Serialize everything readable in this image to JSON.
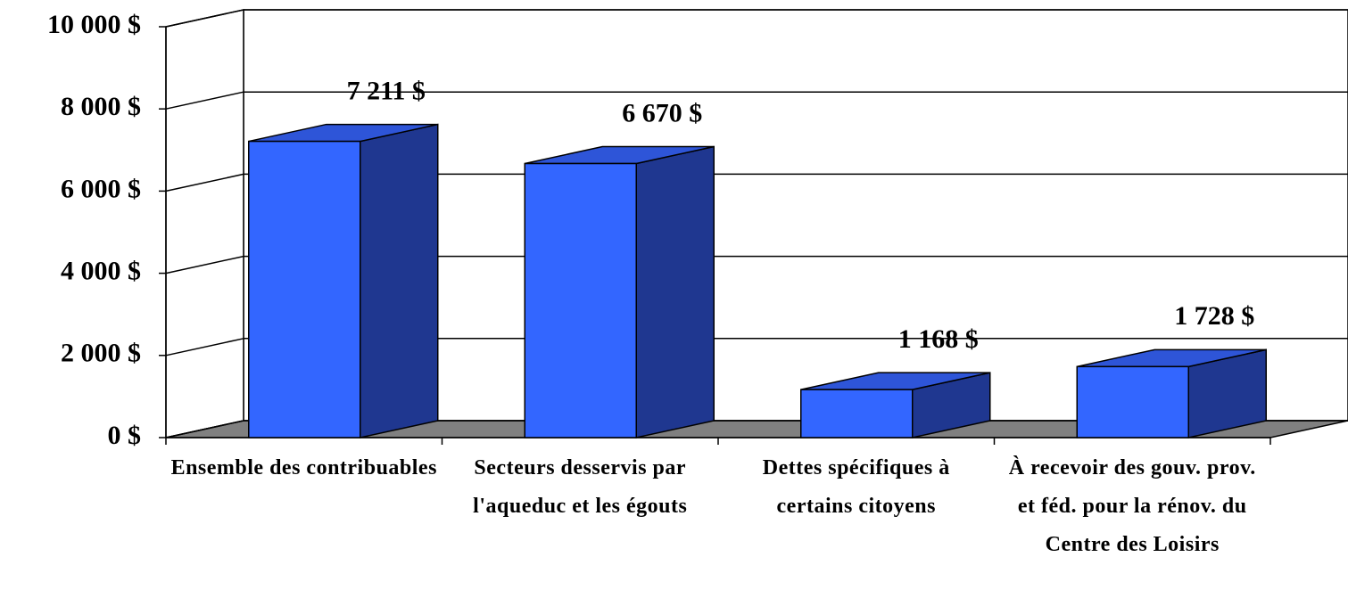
{
  "chart_data": {
    "type": "bar3d",
    "categories": [
      "Ensemble des contribuables",
      "Secteurs desservis par l'aqueduc et les égouts",
      "Dettes spécifiques à certains citoyens",
      "À recevoir des gouv. prov. et féd. pour la rénov. du Centre des Loisirs"
    ],
    "values": [
      7211,
      6670,
      1168,
      1728
    ],
    "value_labels": [
      "7 211 $",
      "6 670 $",
      "1 168 $",
      "1 728 $"
    ],
    "color": "#3366ff",
    "ylim": [
      0,
      10000
    ],
    "yticks": [
      {
        "value": 0,
        "label": "0 $"
      },
      {
        "value": 2000,
        "label": "2 000 $"
      },
      {
        "value": 4000,
        "label": "4 000 $"
      },
      {
        "value": 6000,
        "label": "6 000 $"
      },
      {
        "value": 8000,
        "label": "8 000 $"
      },
      {
        "value": 10000,
        "label": "10 000 $"
      }
    ],
    "grid": true
  }
}
